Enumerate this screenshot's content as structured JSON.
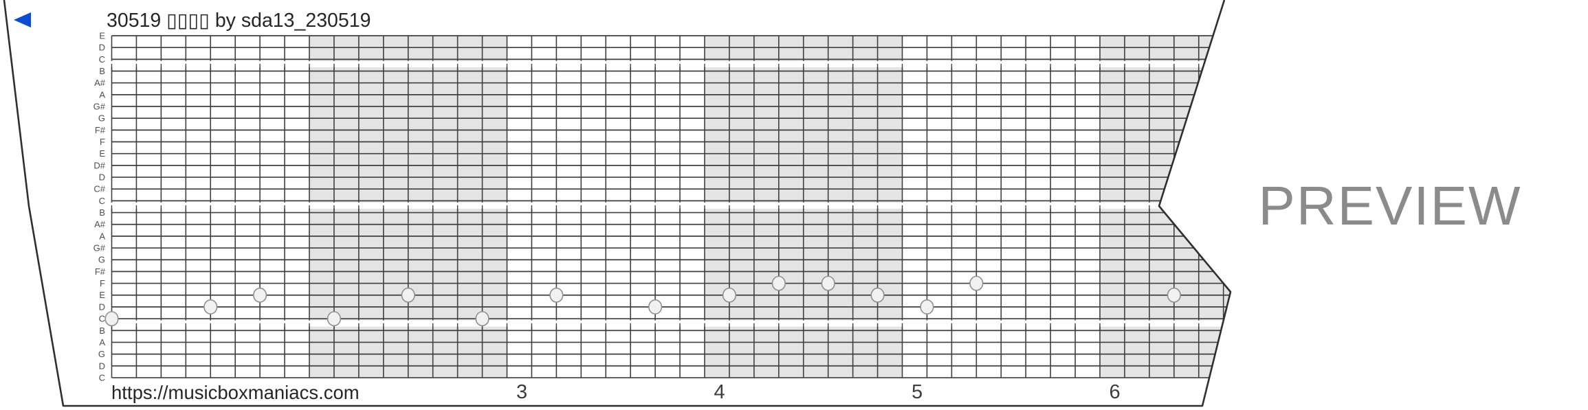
{
  "header": {
    "title": "30519 ▯▯▯▯ by sda13_230519",
    "back_icon": "back-triangle-icon",
    "accent_blue": "#0b4bd8",
    "title_color": "#262626"
  },
  "footer": {
    "url": "https://musicboxmaniacs.com",
    "url_color": "#262626"
  },
  "watermark": {
    "label": "PREVIEW",
    "color": "#8b8b8b"
  },
  "strip": {
    "note_labels": [
      "E",
      "D",
      "C",
      "B",
      "A#",
      "A",
      "G#",
      "G",
      "F#",
      "F",
      "E",
      "D#",
      "D",
      "C#",
      "C",
      "B",
      "A#",
      "A",
      "G#",
      "G",
      "F#",
      "F",
      "E",
      "D",
      "C",
      "B",
      "A",
      "G",
      "D",
      "C"
    ],
    "octave_breaks_after": [
      2,
      14,
      24
    ],
    "measures": {
      "columns_per_measure": 8,
      "shaded_measures": [
        2,
        4,
        6
      ],
      "numbers": [
        {
          "label": "3",
          "measure": 3
        },
        {
          "label": "4",
          "measure": 4
        },
        {
          "label": "5",
          "measure": 5
        },
        {
          "label": "6",
          "measure": 6
        }
      ]
    },
    "notes": [
      {
        "measure": 1,
        "col": 0,
        "pitch": "C",
        "row": 24
      },
      {
        "measure": 1,
        "col": 4,
        "pitch": "D",
        "row": 23
      },
      {
        "measure": 1,
        "col": 6,
        "pitch": "E",
        "row": 22
      },
      {
        "measure": 2,
        "col": 1,
        "pitch": "C",
        "row": 24
      },
      {
        "measure": 2,
        "col": 4,
        "pitch": "E",
        "row": 22
      },
      {
        "measure": 2,
        "col": 7,
        "pitch": "C",
        "row": 24
      },
      {
        "measure": 3,
        "col": 2,
        "pitch": "E",
        "row": 22
      },
      {
        "measure": 3,
        "col": 6,
        "pitch": "D",
        "row": 23
      },
      {
        "measure": 4,
        "col": 1,
        "pitch": "E",
        "row": 22
      },
      {
        "measure": 4,
        "col": 3,
        "pitch": "F",
        "row": 21
      },
      {
        "measure": 4,
        "col": 5,
        "pitch": "F",
        "row": 21
      },
      {
        "measure": 4,
        "col": 7,
        "pitch": "E",
        "row": 22
      },
      {
        "measure": 5,
        "col": 1,
        "pitch": "D",
        "row": 23
      },
      {
        "measure": 5,
        "col": 3,
        "pitch": "F",
        "row": 21
      },
      {
        "measure": 6,
        "col": 3,
        "pitch": "E",
        "row": 22
      }
    ],
    "colors": {
      "paper_fill": "#ffffff",
      "paper_edge": "#2f2f2f",
      "shade": "#e4e4e4",
      "grid_line": "#3f3f3f",
      "note_fill": "#f1f1f1",
      "note_stroke": "#8f8f8f",
      "label_color": "#4d4d4d",
      "measure_number_color": "#3d3d3d"
    }
  }
}
